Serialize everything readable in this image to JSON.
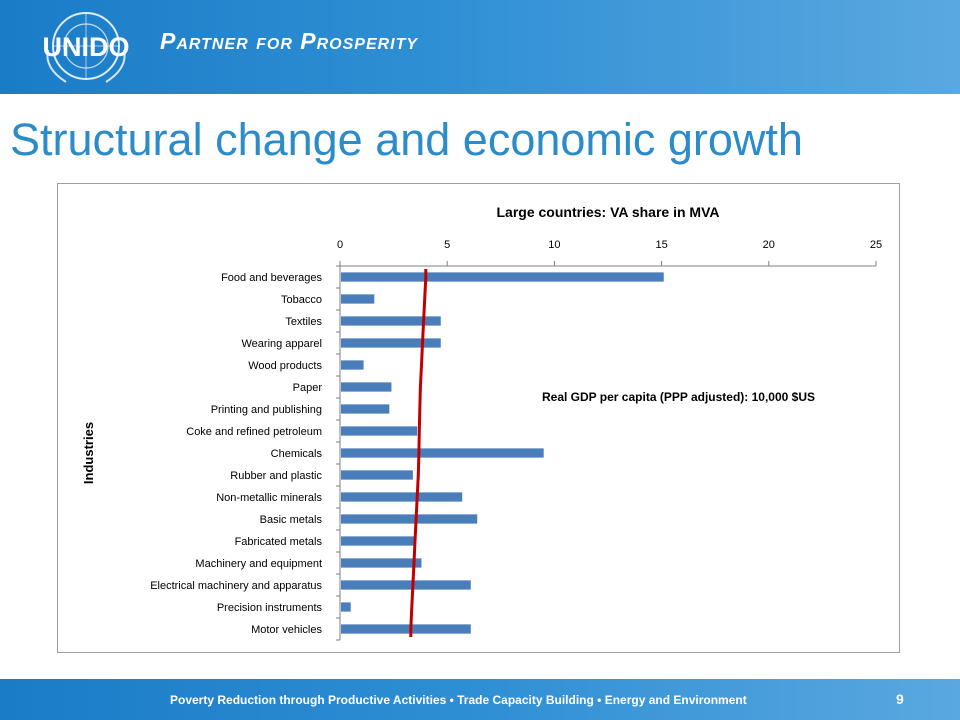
{
  "header": {
    "logo_text": "UNIDO",
    "tagline": "Partner for Prosperity",
    "brand_color": "#1a7cc7"
  },
  "slide": {
    "title": "Structural change and economic growth",
    "page_number": "9"
  },
  "footer": {
    "text": "Poverty Reduction through Productive Activities  •  Trade Capacity Building  •  Energy and Environment"
  },
  "chart_data": {
    "type": "bar",
    "orientation": "horizontal",
    "title": "Large countries: VA share in MVA",
    "ylabel": "Industries",
    "xlabel": "",
    "xlim": [
      0,
      25
    ],
    "xticks": [
      0,
      5,
      10,
      15,
      20,
      25
    ],
    "axis_position": "top",
    "grid": false,
    "bar_color": "#4a7ebb",
    "line_color": "#c00000",
    "annotation": "Real GDP per capita (PPP adjusted): 10,000 $US",
    "categories": [
      "Food and beverages",
      "Tobacco",
      "Textiles",
      "Wearing apparel",
      "Wood products",
      "Paper",
      "Printing and publishing",
      "Coke and refined petroleum",
      "Chemicals",
      "Rubber and plastic",
      "Non-metallic minerals",
      "Basic metals",
      "Fabricated metals",
      "Machinery and equipment",
      "Electrical machinery and apparatus",
      "Precision instruments",
      "Motor vehicles"
    ],
    "values": [
      15.1,
      1.6,
      4.7,
      4.7,
      1.1,
      2.4,
      2.3,
      3.6,
      9.5,
      3.4,
      5.7,
      6.4,
      3.5,
      3.8,
      6.1,
      0.5,
      6.1
    ],
    "line_values": [
      4.0,
      3.95,
      3.9,
      3.85,
      3.8,
      3.75,
      3.72,
      3.7,
      3.68,
      3.65,
      3.6,
      3.55,
      3.5,
      3.45,
      3.4,
      3.35,
      3.3
    ]
  }
}
